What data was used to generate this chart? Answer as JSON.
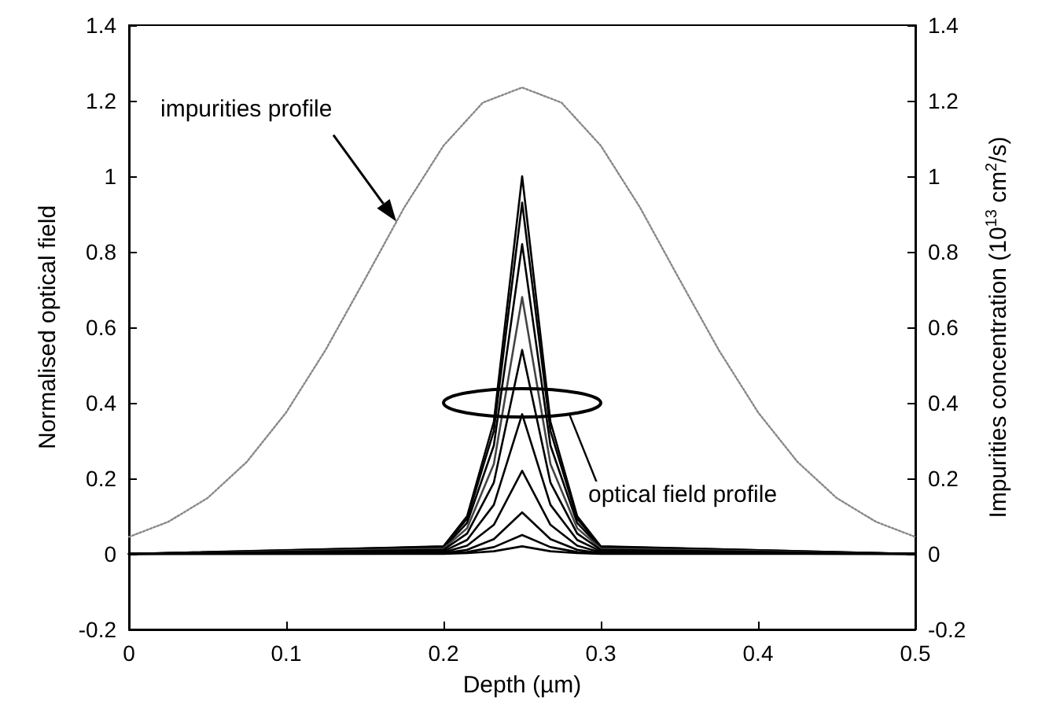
{
  "chart_data": {
    "type": "line",
    "xlabel": "Depth (µm)",
    "ylabel": "Normalised optical field",
    "y2label": "Impurities concentration (10$^{13}$ cm$^{2}$/s)",
    "xlim": [
      0,
      0.5
    ],
    "xticks": [
      0,
      0.1,
      0.2,
      0.3,
      0.4,
      0.5
    ],
    "ylim": [
      -0.2,
      1.4
    ],
    "yticks": [
      -0.2,
      0,
      0.2,
      0.4,
      0.6,
      0.8,
      1,
      1.2,
      1.4
    ],
    "y2lim": [
      -0.2,
      1.4
    ],
    "y2ticks": [
      -0.2,
      0,
      0.2,
      0.4,
      0.6,
      0.8,
      1,
      1.2,
      1.4
    ],
    "grid": false,
    "marker": "none",
    "annotations": [
      "impurities profile",
      "optical field profile"
    ],
    "series": [
      {
        "color": "#888888",
        "axis": "y2",
        "line_style": "dotted",
        "x": [
          0,
          0.025,
          0.05,
          0.075,
          0.1,
          0.125,
          0.15,
          0.175,
          0.2,
          0.225,
          0.25,
          0.275,
          0.3,
          0.325,
          0.35,
          0.375,
          0.4,
          0.425,
          0.45,
          0.475,
          0.5
        ],
        "values": [
          0.045,
          0.085,
          0.148,
          0.244,
          0.375,
          0.54,
          0.727,
          0.917,
          1.081,
          1.195,
          1.235,
          1.195,
          1.081,
          0.917,
          0.727,
          0.54,
          0.375,
          0.244,
          0.148,
          0.085,
          0.045
        ]
      },
      {
        "color": "#000000",
        "x": [
          0,
          0.2,
          0.215,
          0.232,
          0.25,
          0.268,
          0.285,
          0.3,
          0.5
        ],
        "values": [
          0,
          0.02,
          0.1,
          0.35,
          1,
          0.35,
          0.1,
          0.02,
          0
        ]
      },
      {
        "color": "#000000",
        "x": [
          0,
          0.2,
          0.215,
          0.232,
          0.25,
          0.268,
          0.285,
          0.3,
          0.5
        ],
        "values": [
          0,
          0.019,
          0.093,
          0.326,
          0.93,
          0.326,
          0.093,
          0.019,
          0
        ]
      },
      {
        "color": "#000000",
        "x": [
          0,
          0.2,
          0.215,
          0.232,
          0.25,
          0.268,
          0.285,
          0.3,
          0.5
        ],
        "values": [
          0,
          0.016,
          0.082,
          0.287,
          0.82,
          0.287,
          0.082,
          0.016,
          0
        ]
      },
      {
        "color": "#444444",
        "x": [
          0,
          0.2,
          0.215,
          0.232,
          0.25,
          0.268,
          0.285,
          0.3,
          0.5
        ],
        "values": [
          0,
          0.014,
          0.068,
          0.238,
          0.68,
          0.238,
          0.068,
          0.014,
          0
        ]
      },
      {
        "color": "#000000",
        "x": [
          0,
          0.2,
          0.215,
          0.232,
          0.25,
          0.268,
          0.285,
          0.3,
          0.5
        ],
        "values": [
          0,
          0.011,
          0.054,
          0.189,
          0.54,
          0.189,
          0.054,
          0.011,
          0
        ]
      },
      {
        "color": "#000000",
        "x": [
          0,
          0.2,
          0.215,
          0.232,
          0.25,
          0.268,
          0.285,
          0.3,
          0.5
        ],
        "values": [
          0,
          0.007,
          0.037,
          0.13,
          0.37,
          0.13,
          0.037,
          0.007,
          0
        ]
      },
      {
        "color": "#000000",
        "x": [
          0,
          0.2,
          0.215,
          0.232,
          0.25,
          0.268,
          0.285,
          0.3,
          0.5
        ],
        "values": [
          0,
          0.004,
          0.022,
          0.077,
          0.22,
          0.077,
          0.022,
          0.004,
          0
        ]
      },
      {
        "color": "#000000",
        "x": [
          0,
          0.2,
          0.215,
          0.232,
          0.25,
          0.268,
          0.285,
          0.3,
          0.5
        ],
        "values": [
          0,
          0.002,
          0.011,
          0.039,
          0.11,
          0.039,
          0.011,
          0.002,
          0
        ]
      },
      {
        "color": "#000000",
        "x": [
          0,
          0.2,
          0.215,
          0.232,
          0.25,
          0.268,
          0.285,
          0.3,
          0.5
        ],
        "values": [
          0,
          0.001,
          0.005,
          0.018,
          0.05,
          0.018,
          0.005,
          0.001,
          0
        ]
      },
      {
        "color": "#000000",
        "x": [
          0,
          0.2,
          0.215,
          0.232,
          0.25,
          0.268,
          0.285,
          0.3,
          0.5
        ],
        "values": [
          0,
          0,
          0.002,
          0.007,
          0.02,
          0.007,
          0.002,
          0,
          0
        ]
      }
    ]
  }
}
